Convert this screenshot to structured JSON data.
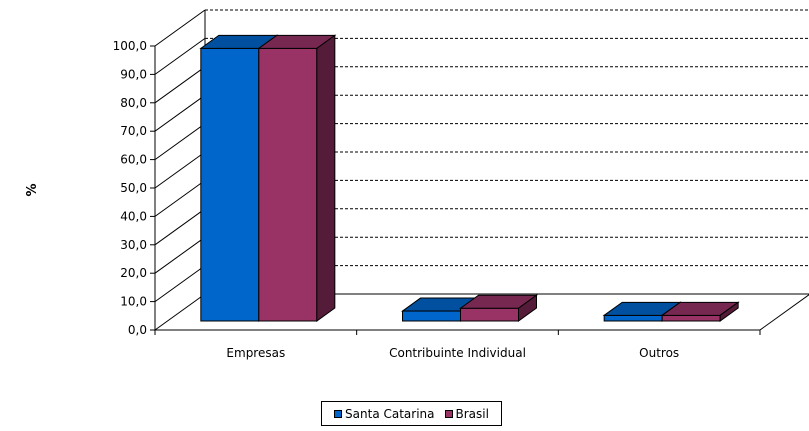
{
  "chart_data": {
    "type": "bar",
    "categories": [
      "Empresas",
      "Contribuinte Individual",
      "Outros"
    ],
    "series": [
      {
        "name": "Santa Catarina",
        "values": [
          96.0,
          3.5,
          2.0
        ],
        "color": "#0066CC"
      },
      {
        "name": "Brasil",
        "values": [
          96.0,
          4.5,
          2.0
        ],
        "color": "#993366"
      }
    ],
    "ylabel": "%",
    "ylim": [
      0,
      100
    ],
    "ytick_labels": [
      "0,0",
      "10,0",
      "20,0",
      "30,0",
      "40,0",
      "50,0",
      "60,0",
      "70,0",
      "80,0",
      "90,0",
      "100,0"
    ],
    "grid": true,
    "legend_position": "bottom",
    "style": "3d-clustered-column"
  }
}
